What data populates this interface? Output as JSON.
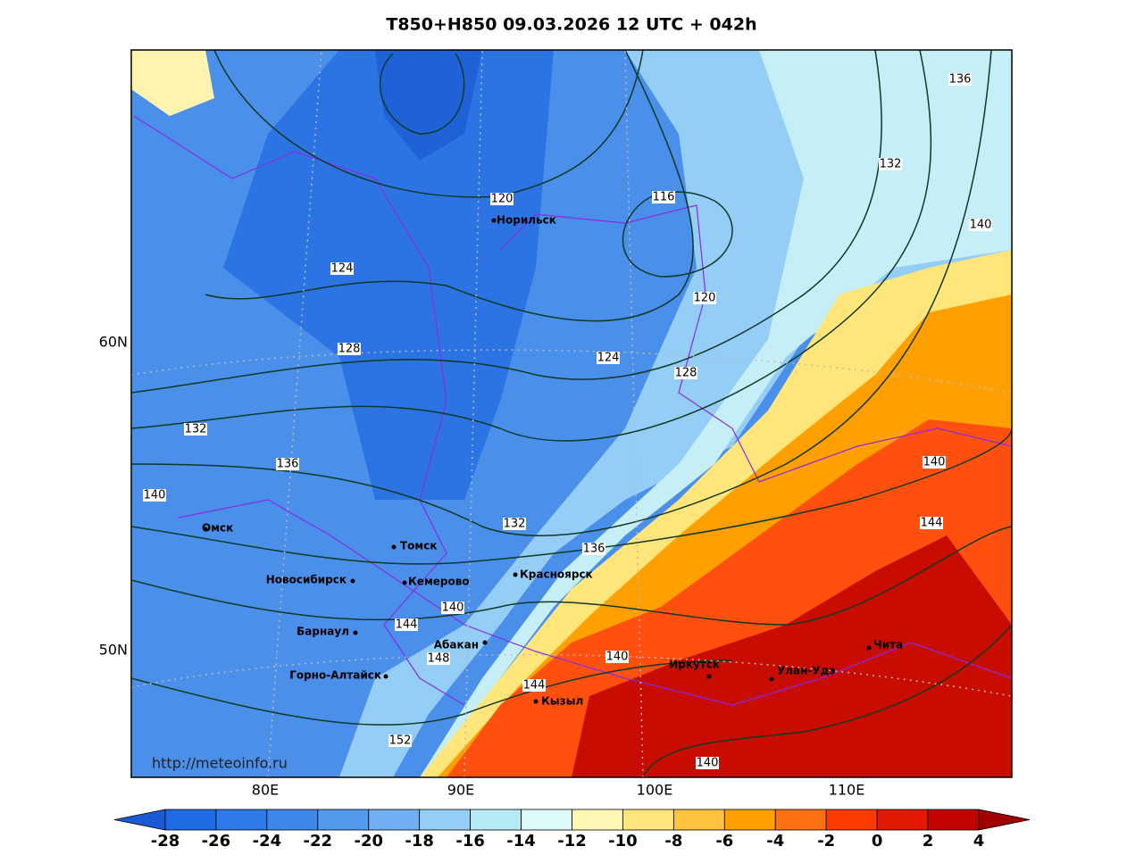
{
  "header": {
    "title": "T850+H850 09.03.2026 12 UTC + 042h"
  },
  "map": {
    "lat_labels": [
      "60N",
      "50N"
    ],
    "lon_labels": [
      "80E",
      "90E",
      "100E",
      "110E"
    ],
    "cities": [
      "Норильск",
      "Омск",
      "Томск",
      "Новосибирск",
      "Кемерово",
      "Красноярск",
      "Барнаул",
      "Абакан",
      "Горно-Алтайск",
      "Кызыл",
      "Иркутск",
      "Улан-Удэ",
      "Чита"
    ],
    "contour_labels": [
      "136",
      "132",
      "140",
      "120",
      "116",
      "124",
      "120",
      "128",
      "124",
      "128",
      "132",
      "136",
      "140",
      "140",
      "144",
      "132",
      "136",
      "140",
      "144",
      "148",
      "140",
      "144",
      "152",
      "140"
    ],
    "source": "http://meteoinfo.ru"
  },
  "colorbar": {
    "ticks": [
      -28,
      -26,
      -24,
      -22,
      -20,
      -18,
      -16,
      -14,
      -12,
      -10,
      -8,
      -6,
      -4,
      -2,
      0,
      2,
      4
    ],
    "colors": [
      "#1a5ad4",
      "#1f6ae6",
      "#2f7aea",
      "#3e88ec",
      "#519aee",
      "#70b0f2",
      "#94cdf6",
      "#b6ebf6",
      "#dcfbf8",
      "#fff8b4",
      "#ffe57a",
      "#ffc23e",
      "#ffa000",
      "#ff7010",
      "#ff3a00",
      "#e21800",
      "#c20400",
      "#a00000"
    ]
  }
}
